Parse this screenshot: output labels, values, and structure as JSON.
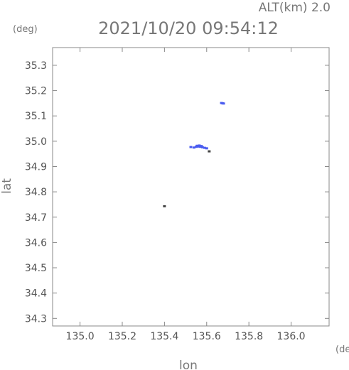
{
  "header": {
    "altitude_label": "ALT(km) 2.0",
    "timestamp": "2021/10/20 09:54:12"
  },
  "chart_data": {
    "type": "scatter",
    "xlabel": "lon",
    "ylabel": "lat",
    "x_unit": "(deg)",
    "y_unit": "(deg)",
    "xlim": [
      134.87,
      136.18
    ],
    "ylim": [
      34.27,
      35.37
    ],
    "xticks": [
      135.0,
      135.2,
      135.4,
      135.6,
      135.8,
      136.0
    ],
    "xtick_labels": [
      "135.0",
      "135.2",
      "135.4",
      "135.6",
      "135.8",
      "136.0"
    ],
    "yticks": [
      34.3,
      34.4,
      34.5,
      34.6,
      34.7,
      34.8,
      34.9,
      35.0,
      35.1,
      35.2,
      35.3
    ],
    "ytick_labels": [
      "34.3",
      "34.4",
      "34.5",
      "34.6",
      "34.7",
      "34.8",
      "34.9",
      "35.0",
      "35.1",
      "35.2",
      "35.3"
    ],
    "grid": false,
    "series": [
      {
        "color": "#4a5cf0",
        "points": [
          {
            "lon": 135.67,
            "lat": 35.151
          },
          {
            "lon": 135.675,
            "lat": 35.15
          },
          {
            "lon": 135.68,
            "lat": 35.149
          },
          {
            "lon": 135.525,
            "lat": 34.977
          },
          {
            "lon": 135.54,
            "lat": 34.975
          },
          {
            "lon": 135.55,
            "lat": 34.978
          },
          {
            "lon": 135.56,
            "lat": 34.979
          },
          {
            "lon": 135.57,
            "lat": 34.978
          },
          {
            "lon": 135.58,
            "lat": 34.976
          },
          {
            "lon": 135.59,
            "lat": 34.974
          },
          {
            "lon": 135.6,
            "lat": 34.972
          },
          {
            "lon": 135.555,
            "lat": 34.982
          },
          {
            "lon": 135.565,
            "lat": 34.983
          },
          {
            "lon": 135.575,
            "lat": 34.981
          }
        ]
      },
      {
        "color": "#444444",
        "points": [
          {
            "lon": 135.4,
            "lat": 34.743
          },
          {
            "lon": 135.612,
            "lat": 34.96
          }
        ]
      }
    ]
  }
}
